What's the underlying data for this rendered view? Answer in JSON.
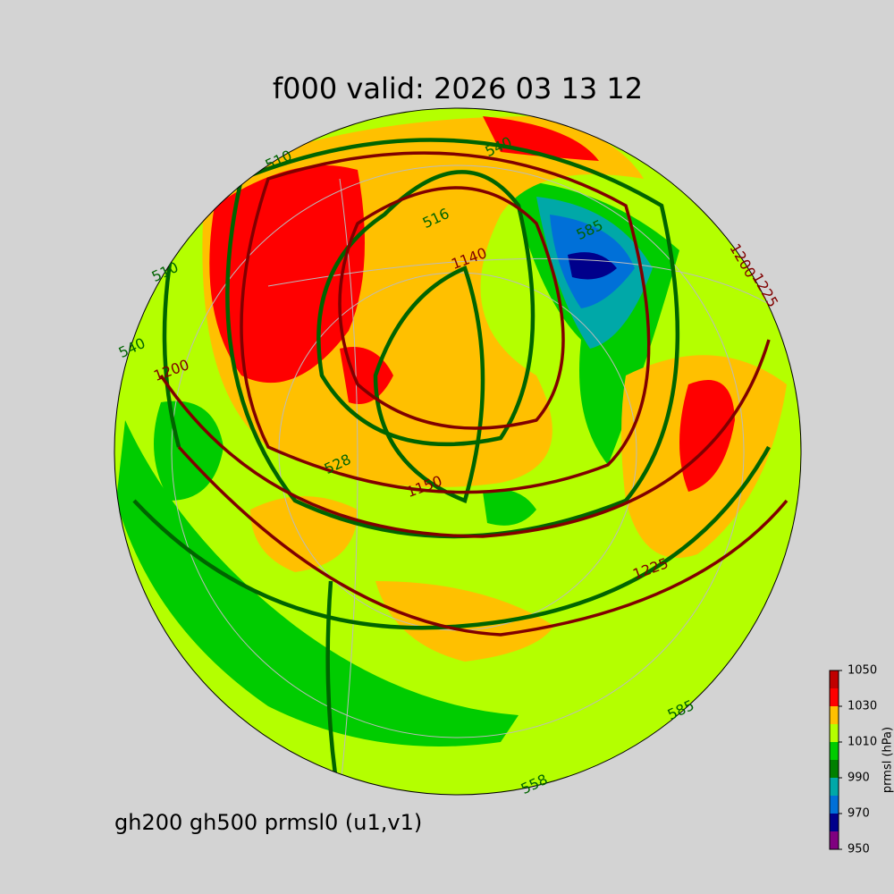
{
  "title": "f000 valid:   2026 03 13 12",
  "caption": "gh200 gh500 prmsl0 (u1,v1)",
  "colorbar": {
    "label": "prmsl (hPa)",
    "range": [
      950,
      1050
    ],
    "ticks": [
      950,
      970,
      990,
      1010,
      1030,
      1050
    ],
    "levels": [
      950,
      960,
      970,
      980,
      990,
      1000,
      1010,
      1020,
      1030,
      1040,
      1050
    ],
    "colors": [
      "#800080",
      "#00008b",
      "#0070d8",
      "#00a8a8",
      "#008000",
      "#00cc00",
      "#b4ff00",
      "#ffc000",
      "#ff0000",
      "#c00000"
    ]
  },
  "gh500_labels": [
    540,
    516,
    510,
    528,
    558,
    585,
    585,
    540,
    510
  ],
  "gh200_labels": [
    1140,
    1200,
    1225,
    1150,
    1225,
    1200
  ]
}
